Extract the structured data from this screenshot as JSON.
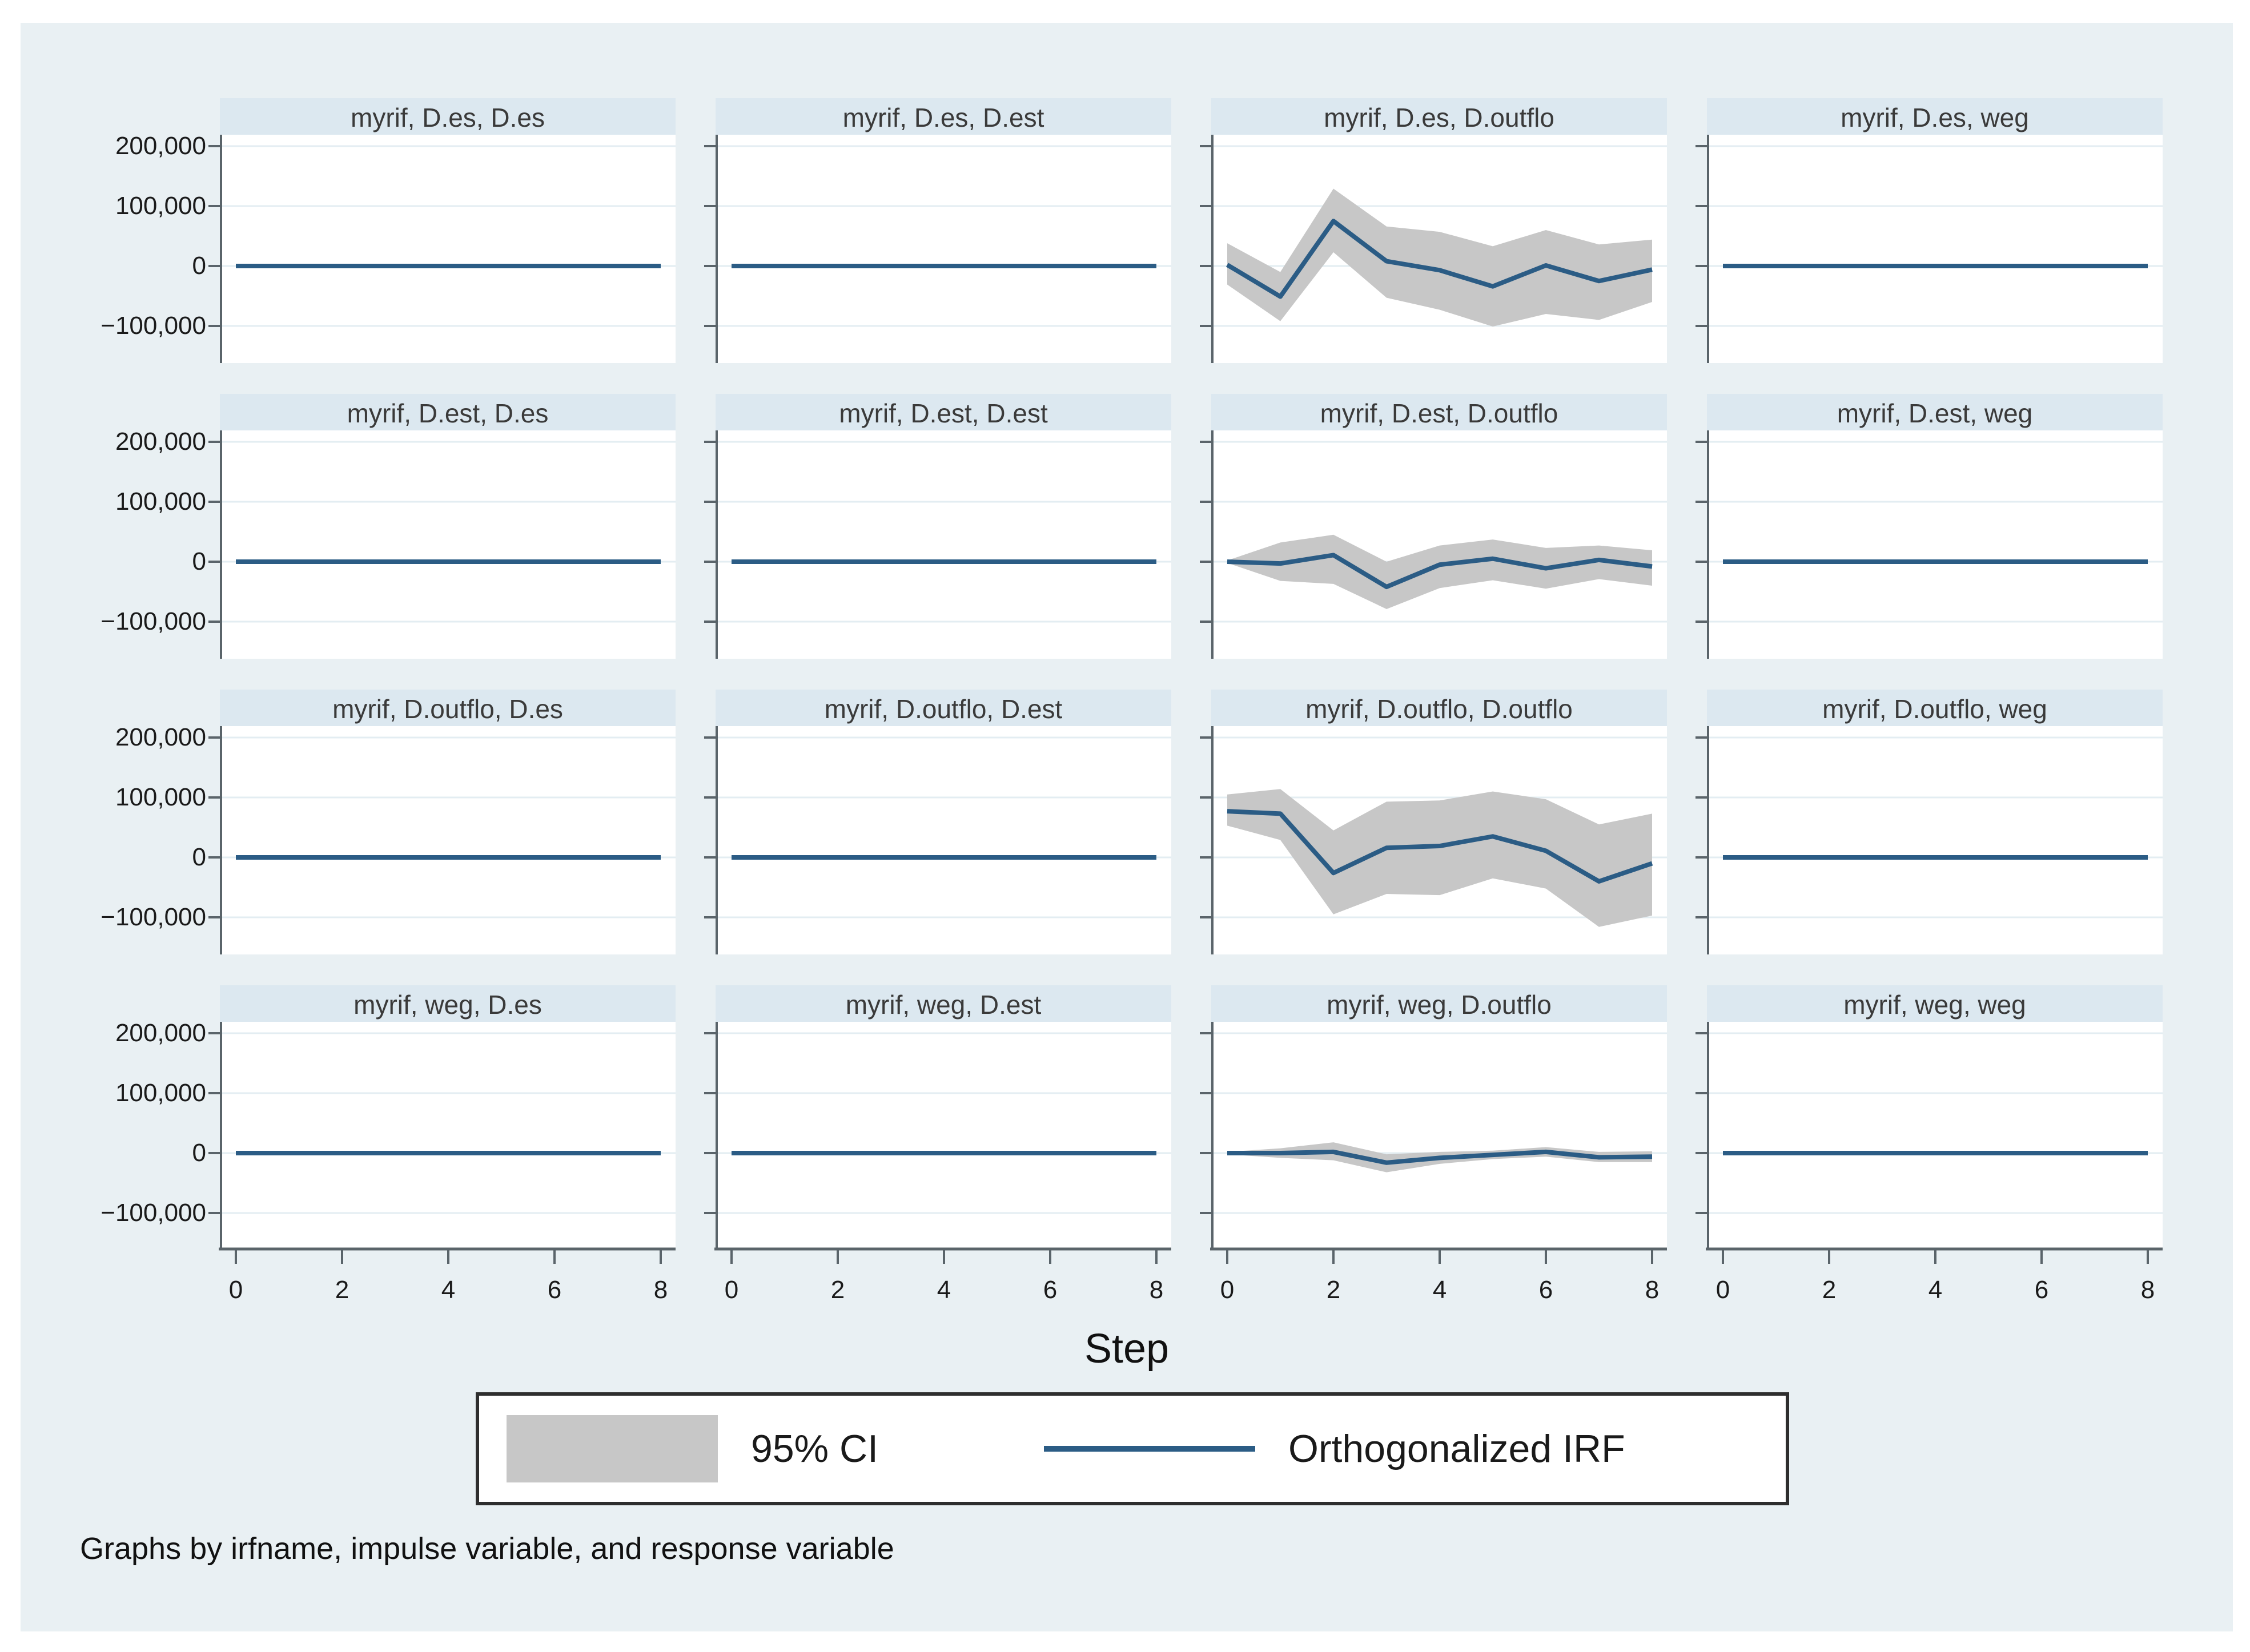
{
  "colors": {
    "figure_background": "#e9f0f3",
    "panel_title_band": "#dce8f0",
    "plot_background": "#ffffff",
    "gridline": "#e3edf2",
    "axis_spine": "#5a646a",
    "irf_line": "#2b5c85",
    "ci_band": "#c7c7c7",
    "legend_border": "#2e2e2e",
    "text": "#1a1a1a"
  },
  "chart_data": {
    "type": "line",
    "layout": {
      "rows": 4,
      "cols": 4,
      "grid": true,
      "legend_position": "bottom-center"
    },
    "x": [
      0,
      1,
      2,
      3,
      4,
      5,
      6,
      7,
      8
    ],
    "xticks": [
      0,
      2,
      4,
      6,
      8
    ],
    "xtick_labels": [
      "0",
      "2",
      "4",
      "6",
      "8"
    ],
    "yticks": [
      200000,
      100000,
      0,
      -100000
    ],
    "ytick_labels": [
      "200,000",
      "100,000",
      "0",
      "−100,000"
    ],
    "ylim": [
      -155000,
      218000
    ],
    "xlim": [
      0,
      8
    ],
    "xlabel": "Step",
    "note": "Graphs by irfname, impulse variable, and response variable",
    "legend": [
      {
        "label": "95% CI",
        "type": "band",
        "color": "#c7c7c7"
      },
      {
        "label": "Orthogonalized IRF",
        "type": "line",
        "color": "#2b5c85"
      }
    ],
    "irfname": "myrif",
    "panels": [
      {
        "title": "myrif, D.es, D.es",
        "impulse": "D.es",
        "response": "D.es",
        "irf": [
          0,
          0,
          0,
          0,
          0,
          0,
          0,
          0,
          0
        ],
        "ci_upper": null,
        "ci_lower": null
      },
      {
        "title": "myrif, D.es, D.est",
        "impulse": "D.es",
        "response": "D.est",
        "irf": [
          0,
          0,
          0,
          0,
          0,
          0,
          0,
          0,
          0
        ],
        "ci_upper": null,
        "ci_lower": null
      },
      {
        "title": "myrif, D.es, D.outflo",
        "impulse": "D.es",
        "response": "D.outflo",
        "irf": [
          2000,
          -51000,
          75000,
          8000,
          -7000,
          -34000,
          1000,
          -25000,
          -6000
        ],
        "ci_upper": [
          38000,
          -10000,
          129000,
          66000,
          57000,
          33000,
          60000,
          36000,
          44000
        ],
        "ci_lower": [
          -31000,
          -92000,
          23000,
          -53000,
          -73000,
          -101000,
          -80000,
          -90000,
          -60000
        ]
      },
      {
        "title": "myrif, D.es, weg",
        "impulse": "D.es",
        "response": "weg",
        "irf": [
          0,
          0,
          0,
          0,
          0,
          0,
          0,
          0,
          0
        ],
        "ci_upper": null,
        "ci_lower": null
      },
      {
        "title": "myrif, D.est, D.es",
        "impulse": "D.est",
        "response": "D.es",
        "irf": [
          0,
          0,
          0,
          0,
          0,
          0,
          0,
          0,
          0
        ],
        "ci_upper": null,
        "ci_lower": null
      },
      {
        "title": "myrif, D.est, D.est",
        "impulse": "D.est",
        "response": "D.est",
        "irf": [
          0,
          0,
          0,
          0,
          0,
          0,
          0,
          0,
          0
        ],
        "ci_upper": null,
        "ci_lower": null
      },
      {
        "title": "myrif, D.est, D.outflo",
        "impulse": "D.est",
        "response": "D.outflo",
        "irf": [
          0,
          -3000,
          11000,
          -42000,
          -5000,
          5000,
          -11000,
          3000,
          -8000
        ],
        "ci_upper": [
          2000,
          32000,
          45000,
          0,
          27000,
          37000,
          23000,
          27000,
          19000
        ],
        "ci_lower": [
          -2000,
          -32000,
          -37000,
          -79000,
          -44000,
          -31000,
          -45000,
          -29000,
          -40000
        ]
      },
      {
        "title": "myrif, D.est, weg",
        "impulse": "D.est",
        "response": "weg",
        "irf": [
          0,
          0,
          0,
          0,
          0,
          0,
          0,
          0,
          0
        ],
        "ci_upper": null,
        "ci_lower": null
      },
      {
        "title": "myrif, D.outflo, D.es",
        "impulse": "D.outflo",
        "response": "D.es",
        "irf": [
          0,
          0,
          0,
          0,
          0,
          0,
          0,
          0,
          0
        ],
        "ci_upper": null,
        "ci_lower": null
      },
      {
        "title": "myrif, D.outflo, D.est",
        "impulse": "D.outflo",
        "response": "D.est",
        "irf": [
          0,
          0,
          0,
          0,
          0,
          0,
          0,
          0,
          0
        ],
        "ci_upper": null,
        "ci_lower": null
      },
      {
        "title": "myrif, D.outflo, D.outflo",
        "impulse": "D.outflo",
        "response": "D.outflo",
        "irf": [
          77000,
          73000,
          -26000,
          16000,
          19000,
          35000,
          11000,
          -40000,
          -10000
        ],
        "ci_upper": [
          105000,
          114000,
          45000,
          93000,
          95000,
          110000,
          97000,
          55000,
          73000
        ],
        "ci_lower": [
          53000,
          29000,
          -95000,
          -61000,
          -63000,
          -35000,
          -52000,
          -116000,
          -97000
        ]
      },
      {
        "title": "myrif, D.outflo, weg",
        "impulse": "D.outflo",
        "response": "weg",
        "irf": [
          0,
          0,
          0,
          0,
          0,
          0,
          0,
          0,
          0
        ],
        "ci_upper": null,
        "ci_lower": null
      },
      {
        "title": "myrif, weg, D.es",
        "impulse": "weg",
        "response": "D.es",
        "irf": [
          0,
          0,
          0,
          0,
          0,
          0,
          0,
          0,
          0
        ],
        "ci_upper": null,
        "ci_lower": null
      },
      {
        "title": "myrif, weg, D.est",
        "impulse": "weg",
        "response": "D.est",
        "irf": [
          0,
          0,
          0,
          0,
          0,
          0,
          0,
          0,
          0
        ],
        "ci_upper": null,
        "ci_lower": null
      },
      {
        "title": "myrif, weg, D.outflo",
        "impulse": "weg",
        "response": "D.outflo",
        "irf": [
          0,
          0,
          2000,
          -16000,
          -8000,
          -3000,
          2000,
          -7000,
          -6000
        ],
        "ci_upper": [
          2000,
          8000,
          18000,
          -2000,
          2000,
          4000,
          10000,
          2000,
          3000
        ],
        "ci_lower": [
          -2000,
          -8000,
          -12000,
          -32000,
          -18000,
          -10000,
          -6000,
          -15000,
          -15000
        ]
      },
      {
        "title": "myrif, weg, weg",
        "impulse": "weg",
        "response": "weg",
        "irf": [
          0,
          0,
          0,
          0,
          0,
          0,
          0,
          0,
          0
        ],
        "ci_upper": null,
        "ci_lower": null
      }
    ]
  }
}
